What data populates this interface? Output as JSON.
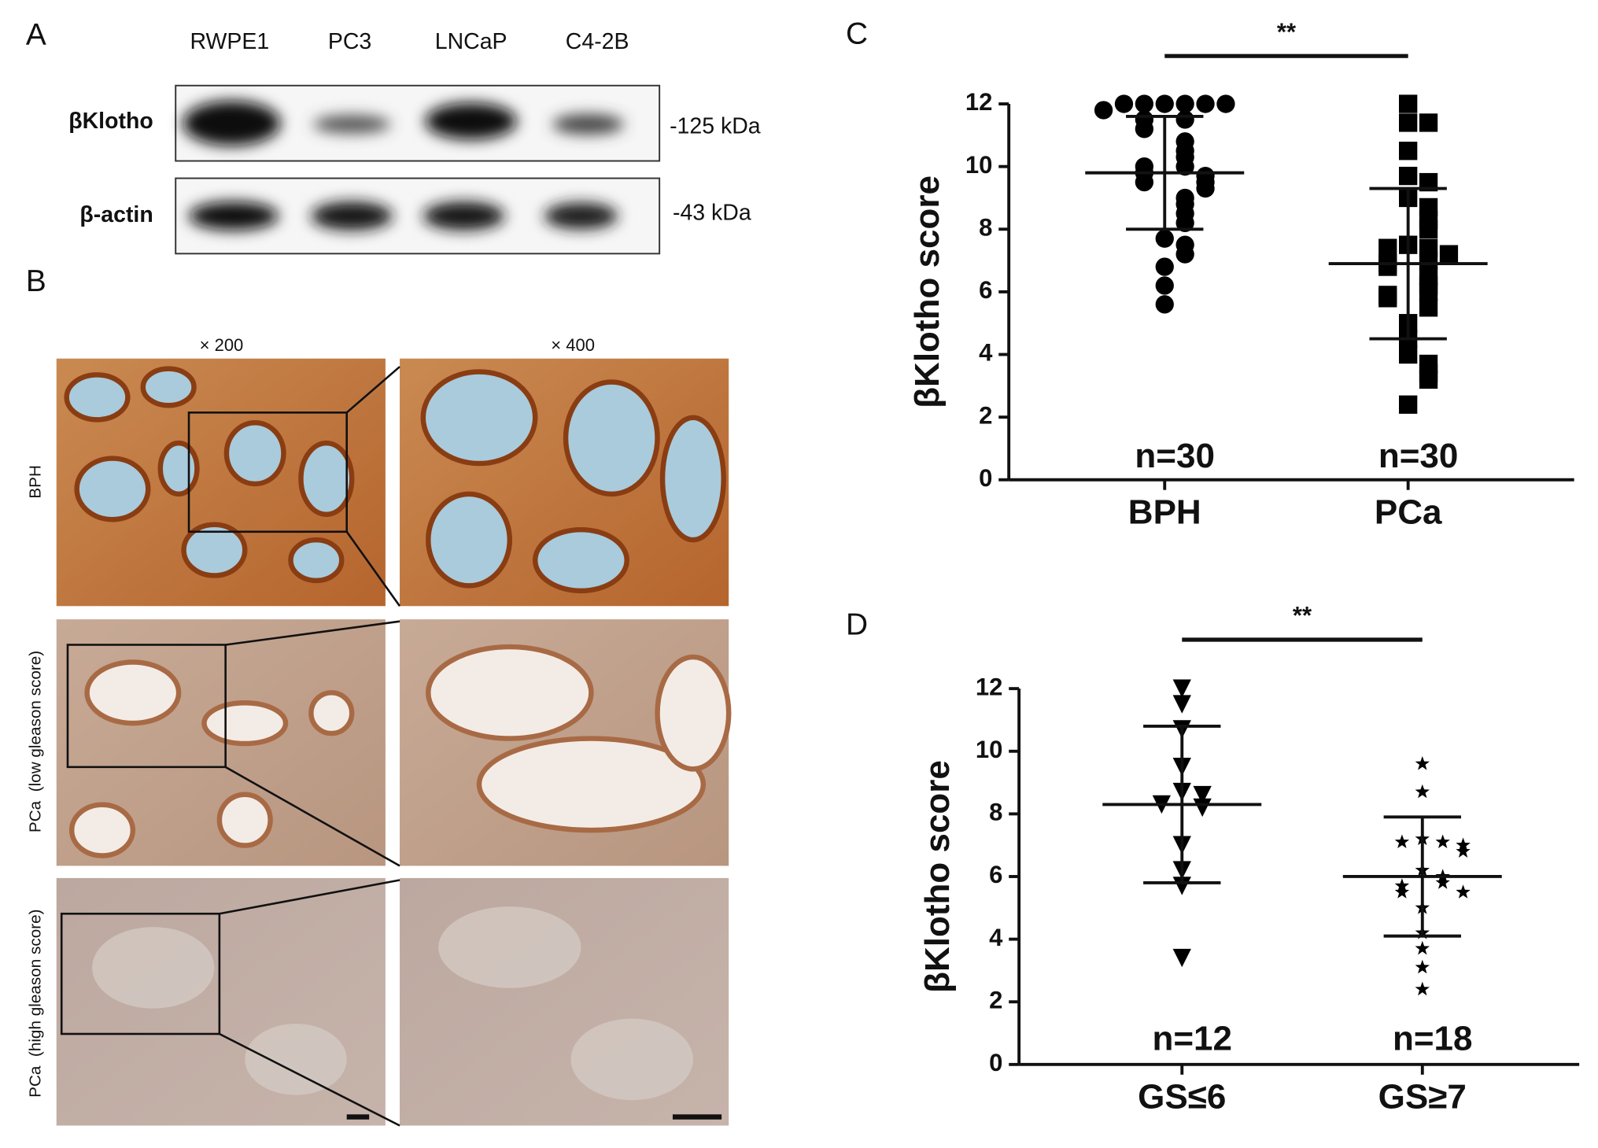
{
  "panel_a": {
    "label": "A",
    "lanes": [
      "RWPE1",
      "PC3",
      "LNCaP",
      "C4-2B"
    ],
    "proteins": [
      {
        "name": "βKlotho",
        "size": "-125 kDa"
      },
      {
        "name": "β-actin",
        "size": "-43 kDa"
      }
    ]
  },
  "panel_b": {
    "label": "B",
    "magnifications": [
      "× 200",
      "× 400"
    ],
    "rows": [
      "BPH",
      "PCa  (low gleason score)",
      "PCa  (high gleason score)"
    ]
  },
  "chart_data": [
    {
      "type": "dotplot",
      "panel": "C",
      "ylabel": "βKlotho score",
      "significance": "**",
      "categories": [
        "BPH",
        "PCa"
      ],
      "ylim": [
        0,
        12
      ],
      "yticks": [
        0,
        2,
        4,
        6,
        8,
        10,
        12
      ],
      "groups": [
        {
          "marker": "circle",
          "color": "#000000",
          "n_label": "n=30",
          "mean": 9.8,
          "sd": 1.8,
          "values": [
            12,
            12,
            12,
            12,
            12,
            12,
            11.8,
            11.5,
            11.5,
            11.2,
            10.8,
            10.5,
            10.3,
            10,
            10,
            9.8,
            9.7,
            9.5,
            9.5,
            9.3,
            9,
            8.8,
            8.5,
            8.2,
            7.7,
            7.5,
            7.2,
            6.8,
            6.2,
            5.6
          ]
        },
        {
          "marker": "square",
          "color": "#000000",
          "n_label": "n=30",
          "mean": 6.9,
          "sd": 2.4,
          "values": [
            12,
            11.4,
            11.4,
            10.5,
            9.7,
            9.5,
            9,
            8.7,
            8.3,
            8,
            7.5,
            7.4,
            7.4,
            7.2,
            7,
            6.9,
            6.8,
            6.5,
            6.2,
            6,
            5.9,
            5.8,
            5.5,
            5,
            4.5,
            4,
            3.7,
            3.4,
            3.2,
            2.4
          ]
        }
      ]
    },
    {
      "type": "dotplot",
      "panel": "D",
      "ylabel": "βKlotho score",
      "significance": "**",
      "categories": [
        "GS≤6",
        "GS≥7"
      ],
      "ylim": [
        0,
        12
      ],
      "yticks": [
        0,
        2,
        4,
        6,
        8,
        10,
        12
      ],
      "groups": [
        {
          "marker": "triangle-down",
          "color": "#000000",
          "n_label": "n=12",
          "mean": 8.3,
          "sd": 2.5,
          "values": [
            12,
            11.5,
            10.7,
            9.5,
            8.7,
            8.6,
            8.3,
            8.2,
            7,
            6.2,
            5.7,
            3.4
          ]
        },
        {
          "marker": "star",
          "color": "#000000",
          "n_label": "n=18",
          "mean": 6.0,
          "sd": 1.9,
          "values": [
            9.6,
            8.7,
            7.2,
            7.1,
            7.1,
            7,
            6.8,
            6.2,
            6,
            5.8,
            5.7,
            5.5,
            5.5,
            5,
            4.2,
            3.7,
            3.1,
            2.4
          ]
        }
      ]
    }
  ]
}
